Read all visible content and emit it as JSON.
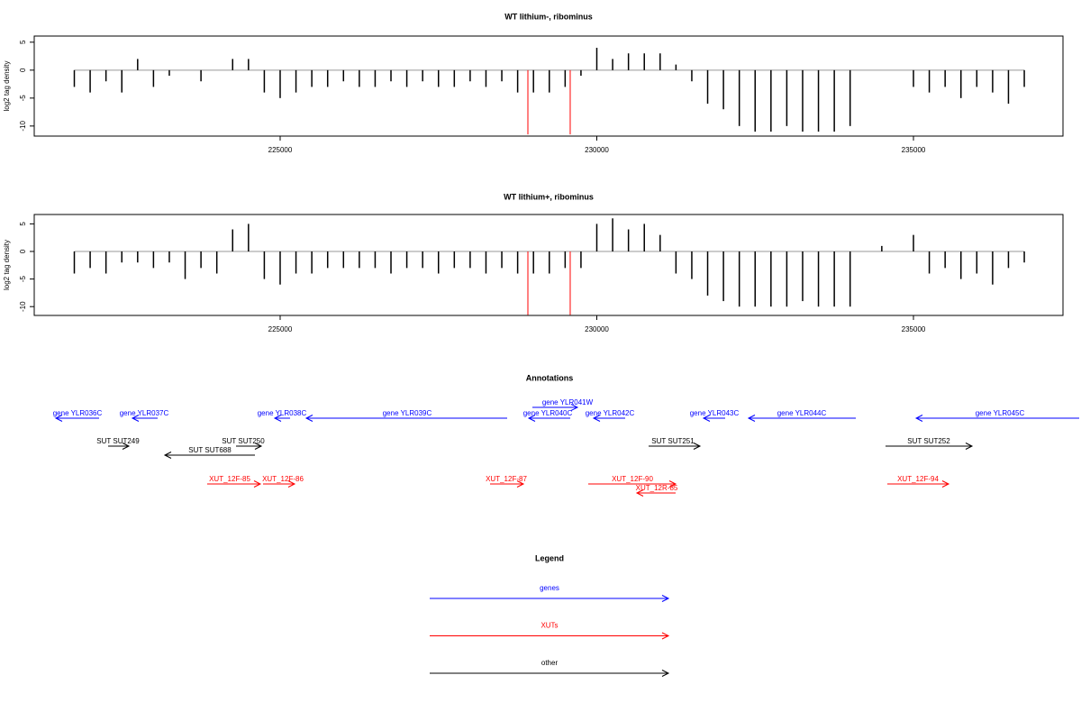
{
  "chart_data": [
    {
      "type": "bar",
      "title": "WT lithium-, ribominus",
      "ylabel": "log2 tag density",
      "x": [
        221750,
        222000,
        222250,
        222500,
        222750,
        223000,
        223250,
        223500,
        223750,
        224000,
        224250,
        224500,
        224750,
        225000,
        225250,
        225500,
        225750,
        226000,
        226250,
        226500,
        226750,
        227000,
        227250,
        227500,
        227750,
        228000,
        228250,
        228500,
        228750,
        229000,
        229250,
        229500,
        229750,
        230000,
        230250,
        230500,
        230750,
        231000,
        231250,
        231500,
        231750,
        232000,
        232250,
        232500,
        232750,
        233000,
        233250,
        233500,
        233750,
        234000,
        234250,
        234500,
        234750,
        235000,
        235250,
        235500,
        235750,
        236000,
        236250,
        236500,
        236750
      ],
      "values": [
        -3,
        -4,
        -2,
        -4,
        2,
        -3,
        -1,
        0,
        -2,
        0,
        2,
        2,
        -4,
        -5,
        -4,
        -3,
        -3,
        -2,
        -3,
        -3,
        -2,
        -3,
        -2,
        -3,
        -3,
        -2,
        -3,
        -2,
        -4,
        -4,
        -4,
        -3,
        -1,
        4,
        2,
        3,
        3,
        3,
        1,
        -2,
        -6,
        -7,
        -10,
        -11,
        -11,
        -10,
        -11,
        -11,
        -11,
        -10,
        0,
        0,
        0,
        -3,
        -4,
        -3,
        -5,
        -3,
        -4,
        -6,
        -3
      ],
      "color": "#000000",
      "markers": {
        "x": [
          228912,
          229580
        ],
        "values": [
          -11.5,
          -11.5
        ],
        "color": "#ff0000"
      },
      "xlim": [
        221117,
        237361
      ],
      "xticks": [
        225000,
        230000,
        235000
      ],
      "ylim": [
        -11.8,
        6.1
      ],
      "yticks": [
        -10,
        -5,
        0,
        5
      ]
    },
    {
      "type": "bar",
      "title": "WT lithium+, ribominus",
      "ylabel": "log2 tag density",
      "x": [
        221750,
        222000,
        222250,
        222500,
        222750,
        223000,
        223250,
        223500,
        223750,
        224000,
        224250,
        224500,
        224750,
        225000,
        225250,
        225500,
        225750,
        226000,
        226250,
        226500,
        226750,
        227000,
        227250,
        227500,
        227750,
        228000,
        228250,
        228500,
        228750,
        229000,
        229250,
        229500,
        229750,
        230000,
        230250,
        230500,
        230750,
        231000,
        231250,
        231500,
        231750,
        232000,
        232250,
        232500,
        232750,
        233000,
        233250,
        233500,
        233750,
        234000,
        234250,
        234500,
        234750,
        235000,
        235250,
        235500,
        235750,
        236000,
        236250,
        236500,
        236750
      ],
      "values": [
        -4,
        -3,
        -4,
        -2,
        -2,
        -3,
        -2,
        -5,
        -3,
        -4,
        4,
        5,
        -5,
        -6,
        -4,
        -4,
        -3,
        -3,
        -3,
        -3,
        -4,
        -3,
        -3,
        -4,
        -3,
        -3,
        -4,
        -3,
        -4,
        -4,
        -4,
        -3,
        -3,
        5,
        6,
        4,
        5,
        3,
        -4,
        -5,
        -8,
        -9,
        -10,
        -10,
        -10,
        -10,
        -9,
        -10,
        -10,
        -10,
        0,
        1,
        0,
        3,
        -4,
        -3,
        -5,
        -4,
        -6,
        -3,
        -2
      ],
      "color": "#000000",
      "markers": {
        "x": [
          228912,
          229580
        ],
        "values": [
          -11.5,
          -11.5
        ],
        "color": "#ff0000"
      },
      "xlim": [
        221117,
        237361
      ],
      "xticks": [
        225000,
        230000,
        235000
      ],
      "ylim": [
        -11.6,
        6.7
      ],
      "yticks": [
        -10,
        -5,
        0,
        5
      ]
    }
  ],
  "annotations": {
    "title": "Annotations",
    "items": [
      {
        "label": "gene YLR036C",
        "color": "#0000ff"
      },
      {
        "label": "gene YLR037C",
        "color": "#0000ff"
      },
      {
        "label": "gene YLR038C",
        "color": "#0000ff"
      },
      {
        "label": "gene YLR039C",
        "color": "#0000ff"
      },
      {
        "label": "gene YLR040C",
        "color": "#0000ff"
      },
      {
        "label": "gene YLR041W",
        "color": "#0000ff"
      },
      {
        "label": "gene YLR042C",
        "color": "#0000ff"
      },
      {
        "label": "gene YLR043C",
        "color": "#0000ff"
      },
      {
        "label": "gene YLR044C",
        "color": "#0000ff"
      },
      {
        "label": "gene YLR045C",
        "color": "#0000ff"
      },
      {
        "label": "SUT SUT249",
        "color": "#000000"
      },
      {
        "label": "SUT SUT250",
        "color": "#000000"
      },
      {
        "label": "SUT SUT688",
        "color": "#000000"
      },
      {
        "label": "SUT SUT251",
        "color": "#000000"
      },
      {
        "label": "SUT SUT252",
        "color": "#000000"
      },
      {
        "label": "XUT_12F-85",
        "color": "#ff0000"
      },
      {
        "label": "XUT_12F-86",
        "color": "#ff0000"
      },
      {
        "label": "XUT_12F-87",
        "color": "#ff0000"
      },
      {
        "label": "XUT_12F-90",
        "color": "#ff0000"
      },
      {
        "label": "XUT_12R-85",
        "color": "#ff0000"
      },
      {
        "label": "XUT_12F-94",
        "color": "#ff0000"
      }
    ]
  },
  "legend": {
    "title": "Legend",
    "items": [
      {
        "label": "genes",
        "color": "#0000ff"
      },
      {
        "label": "XUTs",
        "color": "#ff0000"
      },
      {
        "label": "other",
        "color": "#000000"
      }
    ]
  }
}
